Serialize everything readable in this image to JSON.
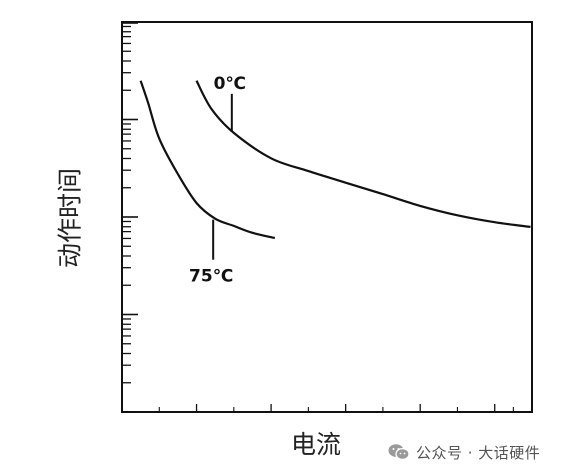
{
  "chart_data": {
    "type": "line",
    "title": "",
    "xlabel": "电流",
    "ylabel": "动作时间",
    "y_scale": "log",
    "grid": false,
    "series": [
      {
        "name": "0℃",
        "points": [
          [
            1.0,
            5.0
          ],
          [
            1.2,
            3.58
          ],
          [
            1.5,
            2.7
          ],
          [
            2.0,
            2.0
          ],
          [
            2.5,
            1.72
          ],
          [
            3.0,
            1.5
          ],
          [
            3.5,
            1.31
          ],
          [
            4.0,
            1.14
          ],
          [
            4.5,
            1.02
          ],
          [
            5.0,
            0.94
          ],
          [
            5.48,
            0.89
          ]
        ]
      },
      {
        "name": "75℃",
        "points": [
          [
            0.25,
            5.0
          ],
          [
            0.35,
            3.85
          ],
          [
            0.5,
            2.52
          ],
          [
            0.75,
            1.66
          ],
          [
            1.0,
            1.18
          ],
          [
            1.25,
            0.98
          ],
          [
            1.5,
            0.9
          ],
          [
            1.75,
            0.83
          ],
          [
            2.05,
            0.78
          ]
        ]
      }
    ],
    "annotations": [
      "0℃",
      "75℃"
    ]
  },
  "watermark": {
    "text": "公众号 · 大话硬件",
    "icon": "wechat-icon"
  }
}
